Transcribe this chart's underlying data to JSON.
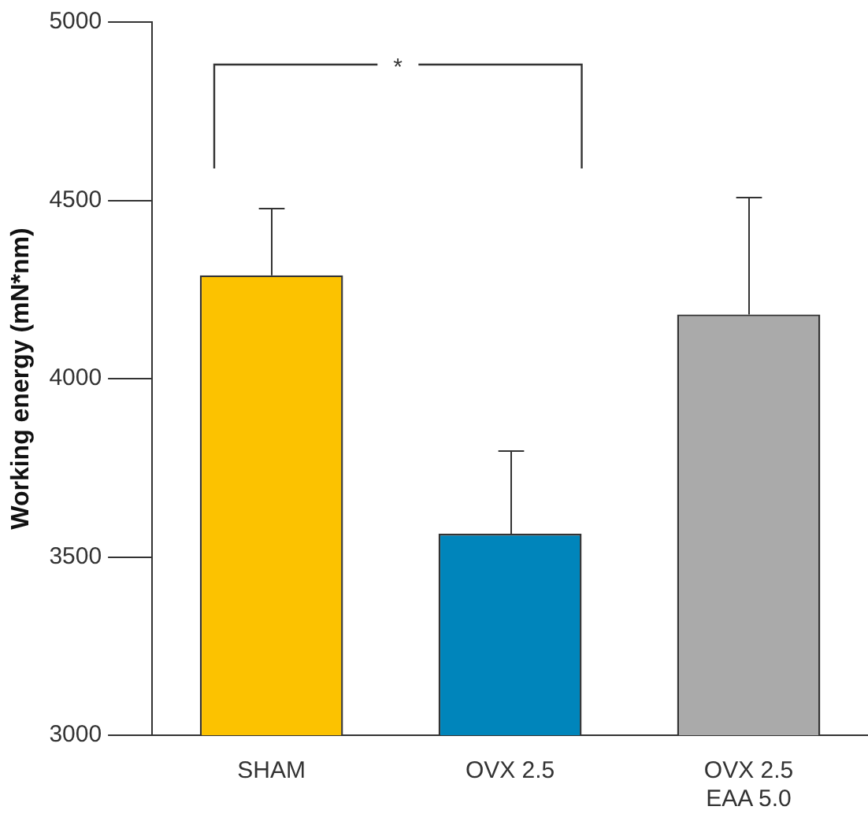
{
  "chart_data": {
    "type": "bar",
    "ylabel": "Working energy (mN*nm)",
    "categories": [
      "SHAM",
      "OVX 2.5",
      "OVX 2.5\nEAA 5.0"
    ],
    "values": [
      4290,
      3565,
      4180
    ],
    "colors": [
      "#fcc200",
      "#0085bb",
      "#aaaaaa"
    ],
    "errors": [
      [
        4290,
        4480
      ],
      [
        3565,
        3800
      ],
      [
        4180,
        4510
      ]
    ],
    "ylim": [
      3000,
      5000
    ],
    "yticks": [
      3000,
      3500,
      4000,
      4500,
      5000
    ],
    "grid": false,
    "legend": false,
    "annotations": [
      "*"
    ]
  }
}
